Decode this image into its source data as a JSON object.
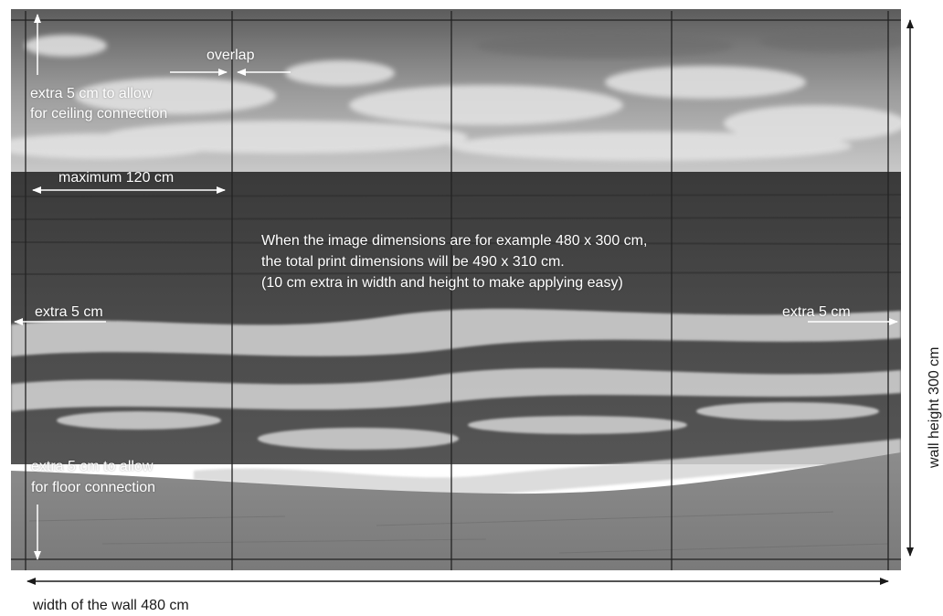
{
  "labels": {
    "overlap": "overlap",
    "ceiling_extra_line1": "extra 5 cm to allow",
    "ceiling_extra_line2": "for ceiling connection",
    "max_width": "maximum 120 cm",
    "note_line1": "When the image dimensions are for example 480 x 300 cm,",
    "note_line2": "the total print dimensions will be 490 x 310 cm.",
    "note_line3": "(10 cm extra in width and height to make applying easy)",
    "extra_left": "extra 5 cm",
    "extra_right": "extra 5 cm",
    "floor_extra_line1": "extra 5 cm to allow",
    "floor_extra_line2": "for floor connection",
    "wall_width": "width of the wall 480 cm",
    "wall_height": "wall height 300 cm"
  },
  "colors": {
    "annotation_white": "#ffffff",
    "annotation_dark": "#1a1a1a",
    "panel_line": "#222222"
  },
  "panel_count": 4
}
